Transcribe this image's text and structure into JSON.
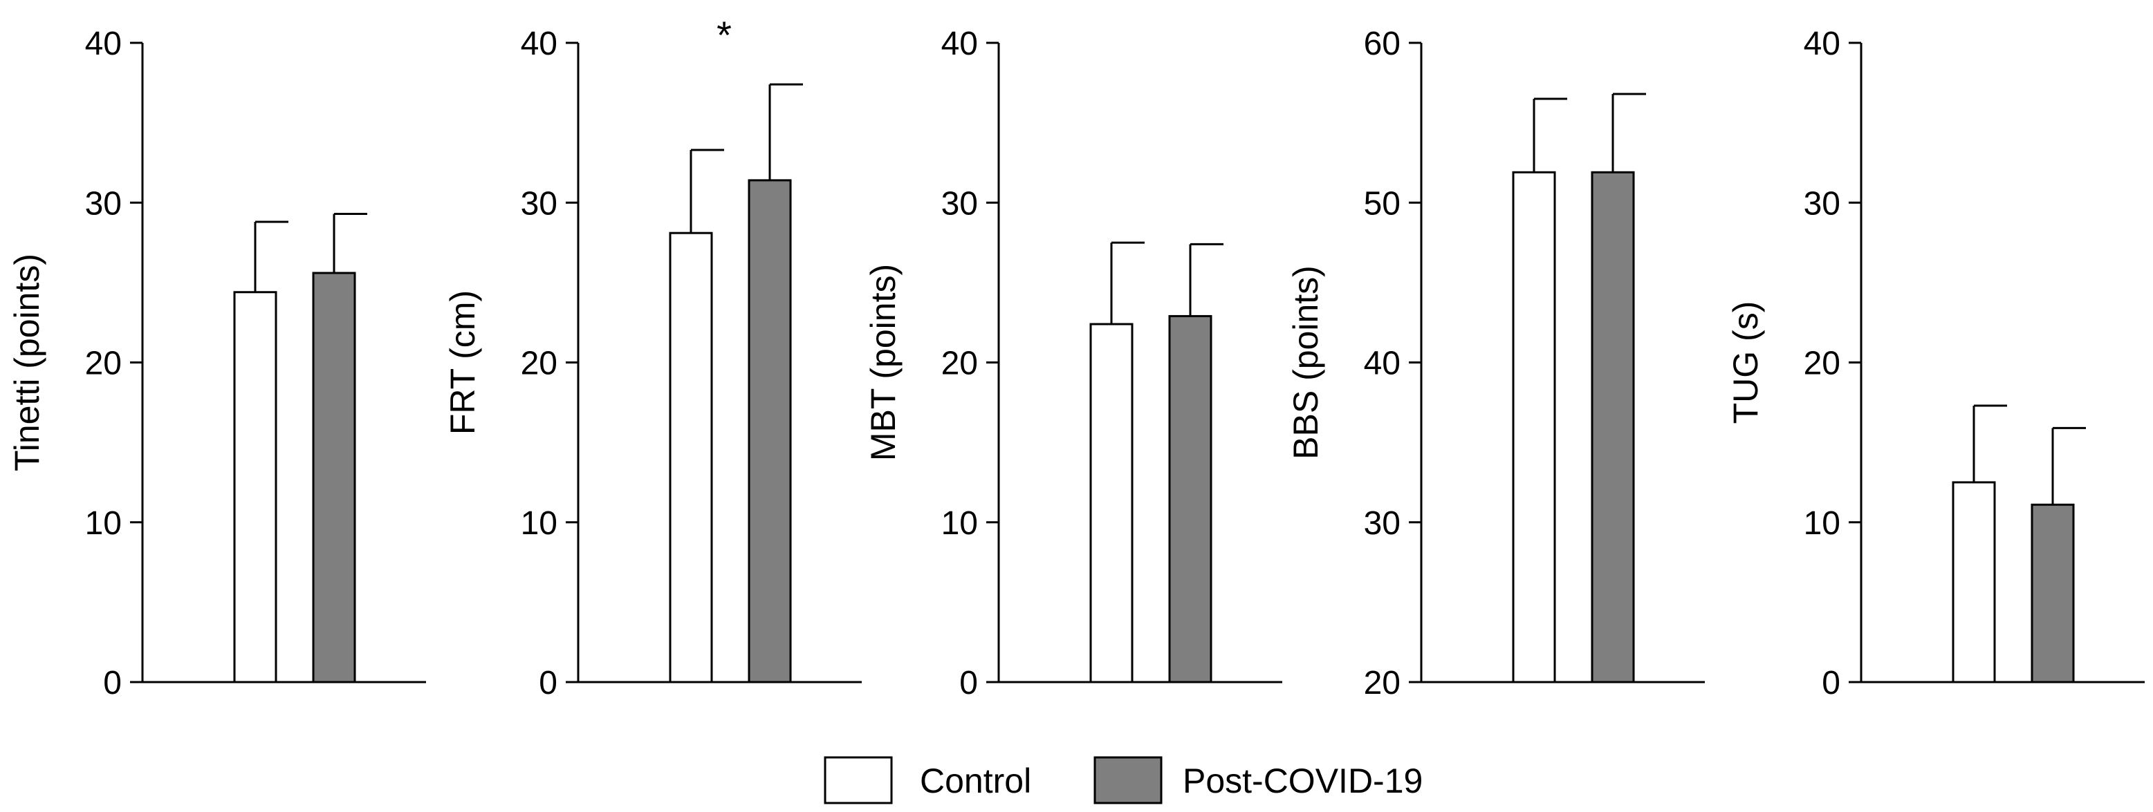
{
  "chart_data": [
    {
      "type": "bar",
      "title": "",
      "xlabel": "",
      "ylabel": "Tinetti (points)",
      "ylim": [
        0,
        40
      ],
      "yticks": [
        0,
        10,
        20,
        30,
        40
      ],
      "categories": [
        "Control",
        "Post-COVID-19"
      ],
      "values": [
        24.4,
        25.6
      ],
      "errors": [
        4.4,
        3.7
      ],
      "annotation": ""
    },
    {
      "type": "bar",
      "title": "",
      "xlabel": "",
      "ylabel": "FRT (cm)",
      "ylim": [
        0,
        40
      ],
      "yticks": [
        0,
        10,
        20,
        30,
        40
      ],
      "categories": [
        "Control",
        "Post-COVID-19"
      ],
      "values": [
        28.1,
        31.4
      ],
      "errors": [
        5.2,
        6.0
      ],
      "annotation": "*"
    },
    {
      "type": "bar",
      "title": "",
      "xlabel": "",
      "ylabel": "MBT (points)",
      "ylim": [
        0,
        40
      ],
      "yticks": [
        0,
        10,
        20,
        30,
        40
      ],
      "categories": [
        "Control",
        "Post-COVID-19"
      ],
      "values": [
        22.4,
        22.9
      ],
      "errors": [
        5.1,
        4.5
      ],
      "annotation": ""
    },
    {
      "type": "bar",
      "title": "",
      "xlabel": "",
      "ylabel": "BBS (points)",
      "ylim": [
        20,
        60
      ],
      "yticks": [
        20,
        30,
        40,
        50,
        60
      ],
      "categories": [
        "Control",
        "Post-COVID-19"
      ],
      "values": [
        51.9,
        51.9
      ],
      "errors": [
        4.6,
        4.9
      ],
      "annotation": ""
    },
    {
      "type": "bar",
      "title": "",
      "xlabel": "",
      "ylabel": "TUG (s)",
      "ylim": [
        0,
        40
      ],
      "yticks": [
        0,
        10,
        20,
        30,
        40
      ],
      "categories": [
        "Control",
        "Post-COVID-19"
      ],
      "values": [
        12.5,
        11.1
      ],
      "errors": [
        4.8,
        4.8
      ],
      "annotation": ""
    }
  ],
  "legend": {
    "entries": [
      {
        "label": "Control",
        "color": "#ffffff"
      },
      {
        "label": "Post-COVID-19",
        "color": "#7f7f7f"
      }
    ]
  },
  "colors": {
    "control": "#ffffff",
    "post_covid": "#7f7f7f",
    "axis": "#000000"
  }
}
